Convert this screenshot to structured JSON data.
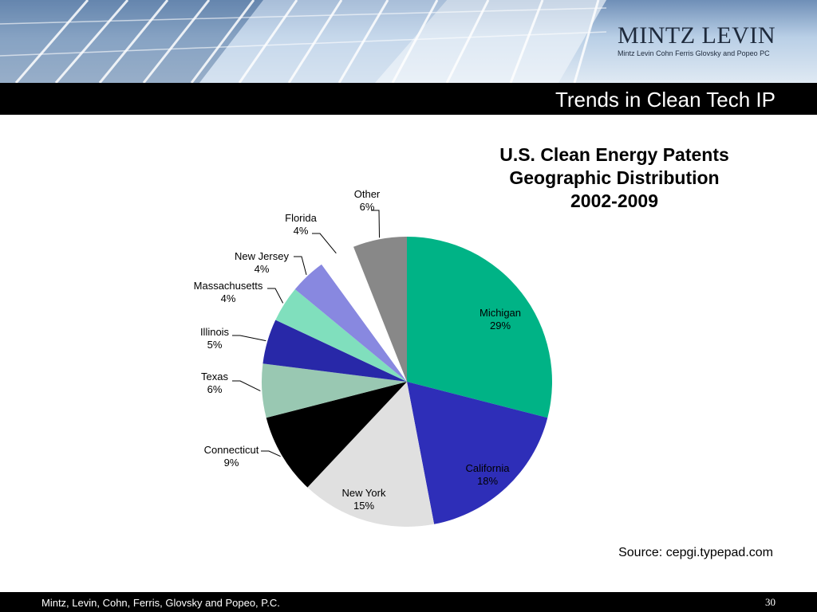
{
  "header": {
    "logo_name": "MINTZ LEVIN",
    "logo_subtitle": "Mintz Levin Cohn Ferris Glovsky and Popeo PC",
    "slide_title": "Trends in Clean Tech IP"
  },
  "chart_data": {
    "type": "pie",
    "title": [
      "U.S. Clean Energy Patents",
      "Geographic Distribution",
      "2002-2009"
    ],
    "slices": [
      {
        "label": "Michigan",
        "percent_label": "29%",
        "value": 29,
        "color": "#00b386"
      },
      {
        "label": "California",
        "percent_label": "18%",
        "value": 18,
        "color": "#2e2eb8"
      },
      {
        "label": "New York",
        "percent_label": "15%",
        "value": 15,
        "color": "#e0e0e0"
      },
      {
        "label": "Connecticut",
        "percent_label": "9%",
        "value": 9,
        "color": "#000000"
      },
      {
        "label": "Texas",
        "percent_label": "6%",
        "value": 6,
        "color": "#99c8b2"
      },
      {
        "label": "Illinois",
        "percent_label": "5%",
        "value": 5,
        "color": "#2828a8"
      },
      {
        "label": "Massachusetts",
        "percent_label": "4%",
        "value": 4,
        "color": "#80dfbd"
      },
      {
        "label": "New Jersey",
        "percent_label": "4%",
        "value": 4,
        "color": "#8888e0"
      },
      {
        "label": "Florida",
        "percent_label": "4%",
        "value": 4,
        "color": "#ffffff"
      },
      {
        "label": "Other",
        "percent_label": "6%",
        "value": 6,
        "color": "#888888"
      }
    ]
  },
  "source": "Source: cepgi.typepad.com",
  "footer": {
    "text": "Mintz, Levin, Cohn, Ferris, Glovsky and Popeo, P.C.",
    "page_number": "30"
  }
}
